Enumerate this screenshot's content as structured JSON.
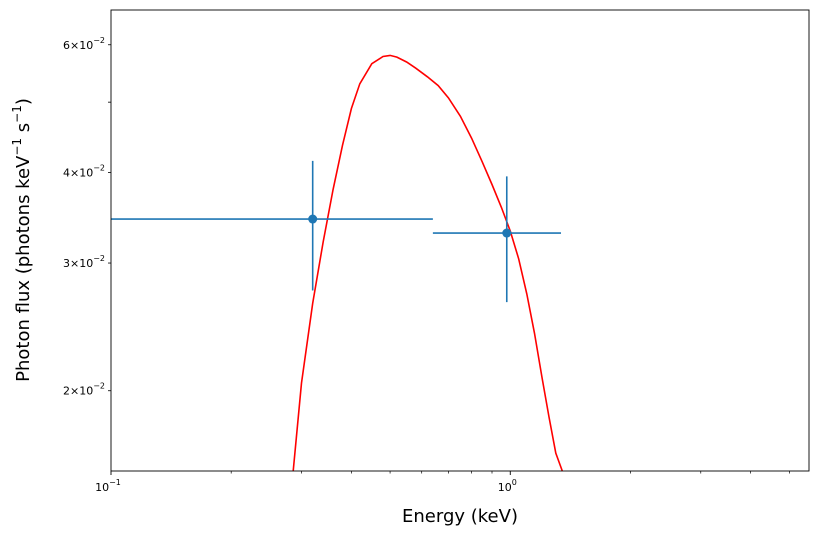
{
  "chart_data": {
    "type": "scatter",
    "title": "",
    "xlabel": "Energy (keV)",
    "ylabel": "Photon flux (photons keV",
    "ylabel_sup1": "−1",
    "ylabel_mid": " s",
    "ylabel_sup2": "−1",
    "ylabel_end": ")",
    "xscale": "log",
    "yscale": "log",
    "xlim": [
      0.1,
      5.6
    ],
    "ylim": [
      0.0155,
      0.067
    ],
    "grid": false,
    "x_major_ticks": [
      {
        "value": 0.1,
        "base": "10",
        "exp": "−1"
      },
      {
        "value": 1.0,
        "base": "10",
        "exp": "0"
      }
    ],
    "x_minor_ticks": [
      0.2,
      0.3,
      0.4,
      0.5,
      0.6,
      0.7,
      0.8,
      0.9,
      2,
      3,
      4,
      5
    ],
    "y_labeled_ticks": [
      {
        "value": 0.02,
        "mant": "2",
        "exp": "−2"
      },
      {
        "value": 0.03,
        "mant": "3",
        "exp": "−2"
      },
      {
        "value": 0.04,
        "mant": "4",
        "exp": "−2"
      },
      {
        "value": 0.06,
        "mant": "6",
        "exp": "−2"
      }
    ],
    "y_minor_ticks": [
      0.05
    ],
    "colors": {
      "data": "#1f77b4",
      "model": "#ff0000"
    },
    "data_points": [
      {
        "x": 0.32,
        "xerr_lo": 0.1,
        "xerr_hi": 0.64,
        "y": 0.0345,
        "yerr_lo": 0.0275,
        "yerr_hi": 0.0415
      },
      {
        "x": 0.98,
        "xerr_lo": 0.64,
        "xerr_hi": 1.34,
        "y": 0.033,
        "yerr_lo": 0.0265,
        "yerr_hi": 0.0395
      }
    ],
    "model_curve": {
      "name": "model",
      "x": [
        0.286,
        0.3,
        0.32,
        0.34,
        0.36,
        0.38,
        0.4,
        0.42,
        0.45,
        0.48,
        0.5,
        0.52,
        0.55,
        0.58,
        0.62,
        0.66,
        0.7,
        0.75,
        0.8,
        0.85,
        0.9,
        0.95,
        1.0,
        1.05,
        1.1,
        1.15,
        1.2,
        1.25,
        1.3,
        1.35
      ],
      "y": [
        0.0155,
        0.0205,
        0.0264,
        0.0321,
        0.0379,
        0.0436,
        0.049,
        0.053,
        0.0565,
        0.0578,
        0.058,
        0.0577,
        0.0568,
        0.0557,
        0.0542,
        0.0527,
        0.0507,
        0.0478,
        0.0446,
        0.0414,
        0.0385,
        0.0358,
        0.0332,
        0.0304,
        0.0272,
        0.024,
        0.0209,
        0.0184,
        0.0164,
        0.0155
      ]
    }
  }
}
